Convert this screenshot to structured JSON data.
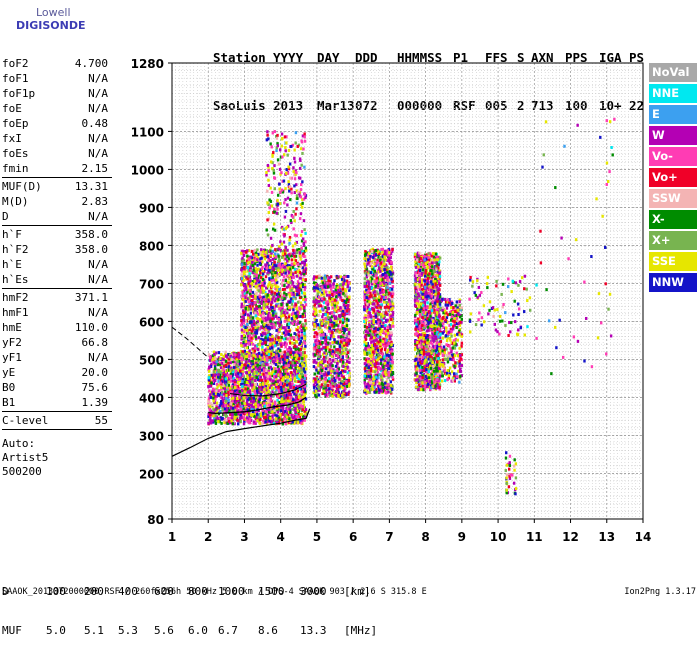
{
  "logo": {
    "line1": "Lowell",
    "line2": "DIGISONDE"
  },
  "header": {
    "labels": [
      "Station",
      "YYYY",
      "DAY",
      "DDD",
      "HHMMSS",
      "P1",
      "FFS",
      "S",
      "AXN",
      "PPS",
      "IGA",
      "PS"
    ],
    "values": [
      "SaoLuis",
      "2013",
      "Mar13",
      "072",
      "000000",
      "RSF",
      "005",
      "2",
      "713",
      "100",
      "10+",
      "22"
    ]
  },
  "params_group1": [
    {
      "k": "foF2",
      "v": "4.700"
    },
    {
      "k": "foF1",
      "v": "N/A"
    },
    {
      "k": "foF1p",
      "v": "N/A"
    },
    {
      "k": "foE",
      "v": "N/A"
    },
    {
      "k": "foEp",
      "v": "0.48"
    },
    {
      "k": "fxI",
      "v": "N/A"
    },
    {
      "k": "foEs",
      "v": "N/A"
    },
    {
      "k": "fmin",
      "v": "2.15"
    }
  ],
  "params_group2": [
    {
      "k": "MUF(D)",
      "v": "13.31"
    },
    {
      "k": "M(D)",
      "v": "2.83"
    },
    {
      "k": "D",
      "v": "N/A"
    }
  ],
  "params_group3": [
    {
      "k": "h`F",
      "v": "358.0"
    },
    {
      "k": "h`F2",
      "v": "358.0"
    },
    {
      "k": "h`E",
      "v": "N/A"
    },
    {
      "k": "h`Es",
      "v": "N/A"
    }
  ],
  "params_group4": [
    {
      "k": "hmF2",
      "v": "371.1"
    },
    {
      "k": "hmF1",
      "v": "N/A"
    },
    {
      "k": "hmE",
      "v": "110.0"
    },
    {
      "k": "yF2",
      "v": "66.8"
    },
    {
      "k": "yF1",
      "v": "N/A"
    },
    {
      "k": "yE",
      "v": "20.0"
    },
    {
      "k": "B0",
      "v": "75.6"
    },
    {
      "k": "B1",
      "v": "1.39"
    }
  ],
  "params_group5": [
    {
      "k": "C-level",
      "v": "55"
    }
  ],
  "params_extra": [
    "Auto:",
    "Artist5",
    "500200"
  ],
  "legend": [
    {
      "name": "NoVal",
      "color": "#a8a8a8"
    },
    {
      "name": "NNE",
      "color": "#00e8f0"
    },
    {
      "name": "E",
      "color": "#3ca0f0"
    },
    {
      "name": "W",
      "color": "#b400b4"
    },
    {
      "name": "Vo-",
      "color": "#ff3cb4"
    },
    {
      "name": "Vo+",
      "color": "#f00028"
    },
    {
      "name": "SSW",
      "color": "#f4b4b4"
    },
    {
      "name": "X-",
      "color": "#008c00"
    },
    {
      "name": "X+",
      "color": "#78b450"
    },
    {
      "name": "SSE",
      "color": "#e6e600"
    },
    {
      "name": "NNW",
      "color": "#1414c8"
    }
  ],
  "dtable": {
    "d_label": "D",
    "d_values": [
      "100",
      "200",
      "400",
      "600",
      "800",
      "1000",
      "1500",
      "3000"
    ],
    "d_unit": "[km]",
    "muf_label": "MUF",
    "muf_values": [
      "5.0",
      "5.1",
      "5.3",
      "5.6",
      "6.0",
      "6.7",
      "8.6",
      "13.3"
    ],
    "muf_unit": "[MHz]"
  },
  "footer": "SAAOK_2013072000000.RSF / 260fx256h 50 kHz 5.0 km / DPS-4 SAAOK 903 / 2.6 S 315.8 E",
  "version": "Ion2Png 1.3.17",
  "chart_data": {
    "type": "scatter",
    "xlim": [
      1,
      14
    ],
    "ylim": [
      80,
      1280
    ],
    "x_ticks": [
      1,
      2,
      3,
      4,
      5,
      6,
      7,
      8,
      9,
      10,
      11,
      12,
      13,
      14
    ],
    "y_ticks": [
      80,
      200,
      300,
      400,
      500,
      600,
      700,
      800,
      900,
      1000,
      1100,
      1280
    ],
    "grid": true,
    "legend_position": "right",
    "traces": [
      {
        "name": "o-trace",
        "x": [
          2.0,
          2.2,
          2.6,
          3.0,
          3.4,
          3.8,
          4.2,
          4.5,
          4.7
        ],
        "y": [
          360,
          358,
          360,
          362,
          368,
          375,
          380,
          388,
          400
        ]
      },
      {
        "name": "x-trace",
        "x": [
          2.6,
          3.0,
          3.5,
          4.0,
          4.4,
          4.7
        ],
        "y": [
          410,
          405,
          404,
          410,
          420,
          435
        ]
      },
      {
        "name": "profile",
        "x": [
          1.0,
          1.5,
          2.0,
          2.5,
          3.0,
          3.5,
          4.0,
          4.4,
          4.7,
          4.8
        ],
        "y": [
          245,
          268,
          292,
          310,
          318,
          325,
          332,
          340,
          345,
          370
        ]
      },
      {
        "name": "dashed",
        "x": [
          1.0,
          1.4,
          2.0
        ],
        "y": [
          585,
          555,
          505
        ]
      }
    ],
    "echo_clusters": [
      {
        "x_range": [
          2.0,
          2.6
        ],
        "y_range": [
          330,
          520
        ],
        "density": 70
      },
      {
        "x_range": [
          2.6,
          4.7
        ],
        "y_range": [
          330,
          520
        ],
        "density": 300
      },
      {
        "x_range": [
          2.9,
          4.7
        ],
        "y_range": [
          500,
          790
        ],
        "density": 260
      },
      {
        "x_range": [
          3.6,
          4.7
        ],
        "y_range": [
          790,
          1100
        ],
        "density": 40
      },
      {
        "x_range": [
          4.9,
          5.9
        ],
        "y_range": [
          400,
          720
        ],
        "density": 180
      },
      {
        "x_range": [
          6.3,
          7.1
        ],
        "y_range": [
          410,
          790
        ],
        "density": 200
      },
      {
        "x_range": [
          7.7,
          8.4
        ],
        "y_range": [
          420,
          780
        ],
        "density": 220
      },
      {
        "x_range": [
          8.3,
          9.0
        ],
        "y_range": [
          440,
          660
        ],
        "density": 60
      },
      {
        "x_range": [
          9.2,
          10.9
        ],
        "y_range": [
          560,
          720
        ],
        "density": 14
      },
      {
        "x_range": [
          10.2,
          10.5
        ],
        "y_range": [
          140,
          260
        ],
        "density": 6
      },
      {
        "x_range": [
          11.0,
          13.3
        ],
        "y_range": [
          450,
          1140
        ],
        "density": 8
      }
    ]
  }
}
